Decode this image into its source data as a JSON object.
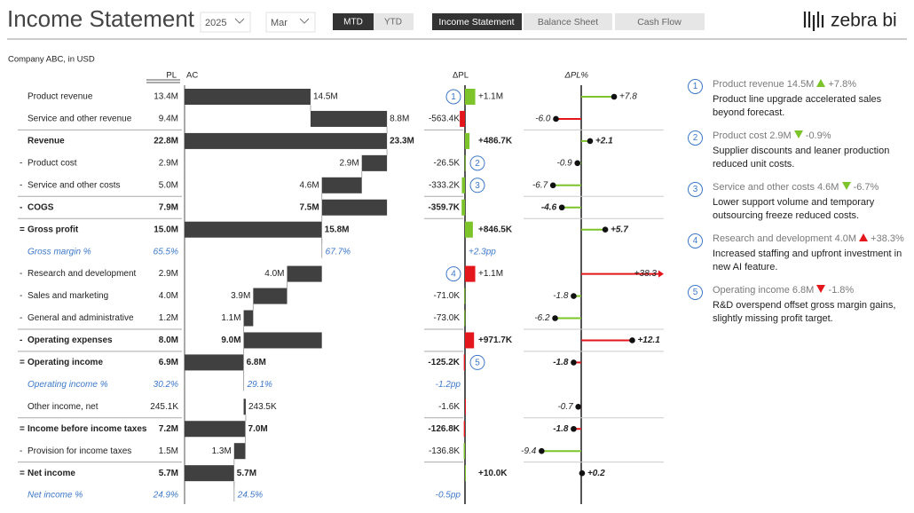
{
  "header": {
    "title": "Income Statement",
    "year": "2025",
    "month": "Mar",
    "buttons": [
      "MTD",
      "YTD"
    ],
    "tabs": [
      "Income Statement",
      "Balance Sheet",
      "Cash Flow"
    ],
    "brand": "zebra bi"
  },
  "subtitle": "Company ABC, in USD",
  "columns": {
    "pl": "PL",
    "ac": "AC",
    "dpl": "ΔPL",
    "dplp": "ΔPL%"
  },
  "colors": {
    "good": "#7cc42a",
    "bad": "#e3161b",
    "bar": "#404040",
    "percent": "#3c78c8"
  },
  "rows": [
    {
      "label": "Product revenue",
      "kind": "plus",
      "pl": "13.4M",
      "ac": 14.5,
      "ac_label": "14.5M",
      "dpl": 1100,
      "dpl_label": "+1.1M",
      "dplp": 7.8,
      "dplp_label": "+7.8",
      "note": "1"
    },
    {
      "label": "Service and other revenue",
      "kind": "plus",
      "pl": "9.4M",
      "ac": 8.8,
      "ac_label": "8.8M",
      "dpl": -563.4,
      "dpl_label": "-563.4K",
      "dplp": -6.0,
      "dplp_label": "-6.0"
    },
    {
      "label": "Revenue",
      "kind": "result",
      "pl": "22.8M",
      "ac": 23.3,
      "ac_label": "23.3M",
      "dpl": 486.7,
      "dpl_label": "+486.7K",
      "dplp": 2.1,
      "dplp_label": "+2.1"
    },
    {
      "prefix": "-",
      "label": "Product cost",
      "kind": "minus",
      "invert": true,
      "pl": "2.9M",
      "ac": 2.9,
      "ac_label": "2.9M",
      "dpl": -26.5,
      "dpl_label": "-26.5K",
      "dplp": -0.9,
      "dplp_label": "-0.9",
      "note": "2"
    },
    {
      "prefix": "-",
      "label": "Service and other costs",
      "kind": "minus",
      "invert": true,
      "pl": "5.0M",
      "ac": 4.6,
      "ac_label": "4.6M",
      "dpl": -333.2,
      "dpl_label": "-333.2K",
      "dplp": -6.7,
      "dplp_label": "-6.7",
      "note": "3"
    },
    {
      "prefix": "-",
      "label": "COGS",
      "kind": "group",
      "invert": true,
      "pl": "7.9M",
      "ac": 7.5,
      "ac_label": "7.5M",
      "dpl": -359.7,
      "dpl_label": "-359.7K",
      "dplp": -4.6,
      "dplp_label": "-4.6"
    },
    {
      "prefix": "=",
      "label": "Gross profit",
      "kind": "result",
      "pl": "15.0M",
      "ac": 15.8,
      "ac_label": "15.8M",
      "dpl": 846.5,
      "dpl_label": "+846.5K",
      "dplp": 5.7,
      "dplp_label": "+5.7"
    },
    {
      "label": "Gross margin %",
      "kind": "percent",
      "pl": "65.5%",
      "ac": 67.7,
      "ac_label": "67.7%",
      "dpl": 2.3,
      "dpl_label": "+2.3pp"
    },
    {
      "prefix": "-",
      "label": "Research and development",
      "kind": "minus",
      "invert": true,
      "pl": "2.9M",
      "ac": 4.0,
      "ac_label": "4.0M",
      "dpl": 1100,
      "dpl_label": "+1.1M",
      "dplp": 38.3,
      "dplp_label": "+38.3",
      "note": "4"
    },
    {
      "prefix": "-",
      "label": "Sales and marketing",
      "kind": "minus",
      "invert": true,
      "pl": "4.0M",
      "ac": 3.9,
      "ac_label": "3.9M",
      "dpl": -71.0,
      "dpl_label": "-71.0K",
      "dplp": -1.8,
      "dplp_label": "-1.8"
    },
    {
      "prefix": "-",
      "label": "General and administrative",
      "kind": "minus",
      "invert": true,
      "pl": "1.2M",
      "ac": 1.1,
      "ac_label": "1.1M",
      "dpl": -73.0,
      "dpl_label": "-73.0K",
      "dplp": -6.2,
      "dplp_label": "-6.2"
    },
    {
      "prefix": "-",
      "label": "Operating expenses",
      "kind": "group",
      "invert": true,
      "pl": "8.0M",
      "ac": 9.0,
      "ac_label": "9.0M",
      "dpl": 971.7,
      "dpl_label": "+971.7K",
      "dplp": 12.1,
      "dplp_label": "+12.1"
    },
    {
      "prefix": "=",
      "label": "Operating income",
      "kind": "result",
      "pl": "6.9M",
      "ac": 6.8,
      "ac_label": "6.8M",
      "dpl": -125.2,
      "dpl_label": "-125.2K",
      "dplp": -1.8,
      "dplp_label": "-1.8",
      "note": "5"
    },
    {
      "label": "Operating income %",
      "kind": "percent",
      "pl": "30.2%",
      "ac": 29.1,
      "ac_label": "29.1%",
      "dpl": -1.2,
      "dpl_label": "-1.2pp"
    },
    {
      "label": "Other income, net",
      "kind": "plus",
      "pl": "245.1K",
      "ac": 0.2435,
      "ac_label": "243.5K",
      "dpl": -1.6,
      "dpl_label": "-1.6K",
      "dplp": -0.7,
      "dplp_label": "-0.7"
    },
    {
      "prefix": "=",
      "label": "Income before income taxes",
      "kind": "result",
      "pl": "7.2M",
      "ac": 7.0,
      "ac_label": "7.0M",
      "dpl": -126.8,
      "dpl_label": "-126.8K",
      "dplp": -1.8,
      "dplp_label": "-1.8"
    },
    {
      "prefix": "-",
      "label": "Provision for income taxes",
      "kind": "minus",
      "invert": true,
      "pl": "1.5M",
      "ac": 1.3,
      "ac_label": "1.3M",
      "dpl": -136.8,
      "dpl_label": "-136.8K",
      "dplp": -9.4,
      "dplp_label": "-9.4"
    },
    {
      "prefix": "=",
      "label": "Net income",
      "kind": "result",
      "pl": "5.7M",
      "ac": 5.7,
      "ac_label": "5.7M",
      "dpl": 10.0,
      "dpl_label": "+10.0K",
      "dplp": 0.2,
      "dplp_label": "+0.2"
    },
    {
      "label": "Net income %",
      "kind": "percent",
      "pl": "24.9%",
      "ac": 24.5,
      "ac_label": "24.5%",
      "dpl": -0.5,
      "dpl_label": "-0.5pp"
    }
  ],
  "comments": [
    {
      "number": "1",
      "title": "Product revenue 14.5M",
      "arrow": "up",
      "color": "#7cc42a",
      "delta": "+7.8%",
      "text": "Product line upgrade accelerated sales beyond forecast."
    },
    {
      "number": "2",
      "title": "Product cost 2.9M",
      "arrow": "down",
      "color": "#7cc42a",
      "delta": "-0.9%",
      "text": "Supplier discounts and leaner production reduced unit costs."
    },
    {
      "number": "3",
      "title": "Service and other costs 4.6M",
      "arrow": "down",
      "color": "#7cc42a",
      "delta": "-6.7%",
      "text": "Lower support volume and temporary outsourcing freeze reduced costs."
    },
    {
      "number": "4",
      "title": "Research and development 4.0M",
      "arrow": "up",
      "color": "#e3161b",
      "delta": "+38.3%",
      "text": "Increased staffing and upfront investment in new AI feature."
    },
    {
      "number": "5",
      "title": "Operating income 6.8M",
      "arrow": "down",
      "color": "#e3161b",
      "delta": "-1.8%",
      "text": "R&D overspend offset gross margin gains, slightly missing profit target."
    }
  ]
}
